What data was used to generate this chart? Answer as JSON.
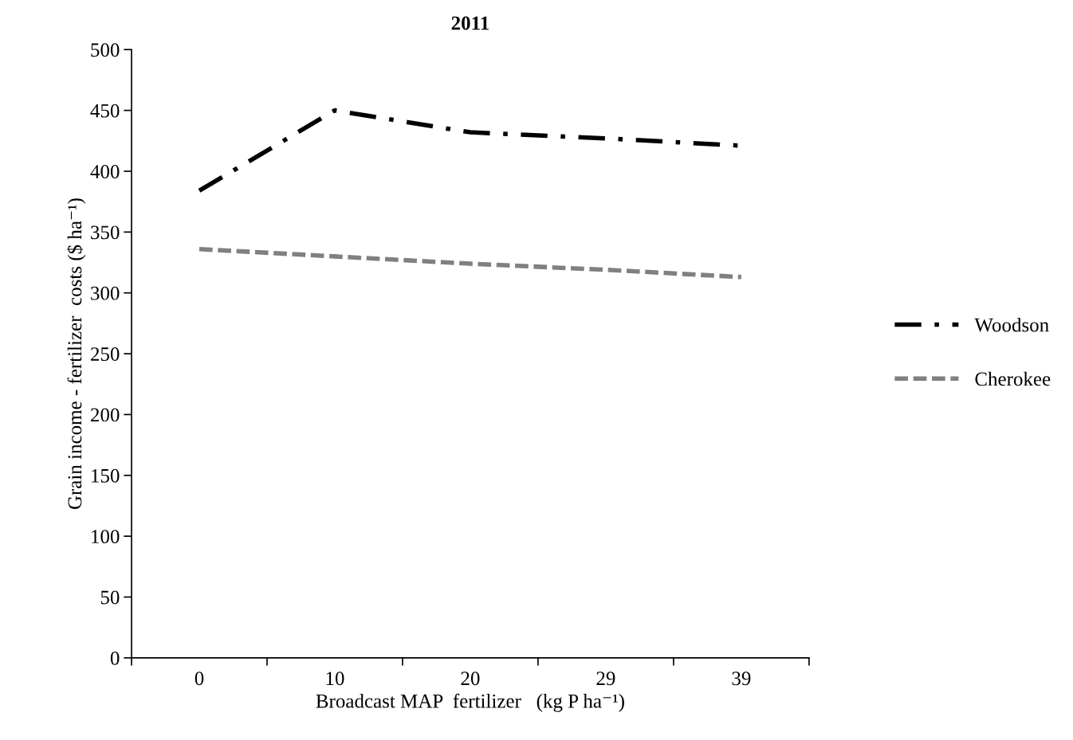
{
  "chart_data": {
    "type": "line",
    "title": "2011",
    "xlabel": "Broadcast MAP  fertilizer   (kg P ha⁻¹)",
    "ylabel": "Grain income - fertilizer  costs ($ ha⁻¹)",
    "categories": [
      "0",
      "10",
      "20",
      "29",
      "39"
    ],
    "series": [
      {
        "name": "Woodson",
        "color": "#000000",
        "line_style": "dashdot",
        "values": [
          384,
          450,
          432,
          427,
          421
        ]
      },
      {
        "name": "Cherokee",
        "color": "#808080",
        "line_style": "dashed",
        "values": [
          336,
          330,
          324,
          319,
          313
        ]
      }
    ],
    "ylim": [
      0,
      500
    ],
    "yticks": [
      0,
      50,
      100,
      150,
      200,
      250,
      300,
      350,
      400,
      450,
      500
    ],
    "grid": false,
    "legend": "right",
    "marker": "none"
  }
}
